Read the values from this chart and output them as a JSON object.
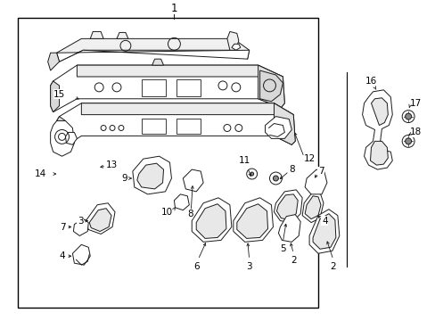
{
  "background_color": "#ffffff",
  "line_color": "#1a1a1a",
  "text_color": "#000000",
  "fig_width": 4.89,
  "fig_height": 3.6,
  "dpi": 100,
  "lw": 0.7,
  "fs": 7.5
}
